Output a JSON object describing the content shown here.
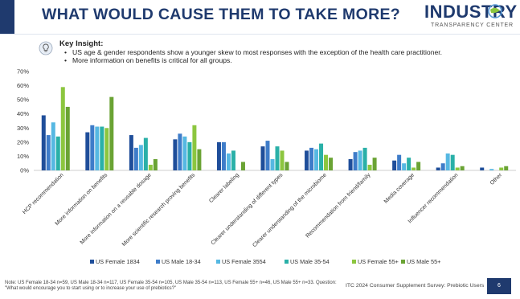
{
  "title": "WHAT WOULD CAUSE THEM TO TAKE MORE?",
  "logo": {
    "name": "INDUSTRY",
    "subtitle": "TRANSPARENCY CENTER"
  },
  "insight": {
    "heading": "Key Insight:",
    "bullets": [
      "US age & gender respondents show a younger skew to most responses with the exception of the health care practitioner.",
      "More information on benefits is critical for all groups."
    ]
  },
  "chart_data": {
    "type": "bar",
    "ylim": [
      0,
      70
    ],
    "yticks": [
      "0%",
      "10%",
      "20%",
      "30%",
      "40%",
      "50%",
      "60%",
      "70%"
    ],
    "grid": false,
    "legend_position": "bottom",
    "categories": [
      "HCP recommendation",
      "More information on benefits",
      "More information on a reusable dosage",
      "More scientific research proving benefits",
      "Clearer labeling",
      "Clearer understanding of different types",
      "Clearer understanding of the microbiome",
      "Recommendation from friend/family",
      "Media coverage",
      "Influencer recommendation",
      "Other"
    ],
    "series": [
      {
        "name": "US Female 1834",
        "color": "#1f4e9a",
        "values": [
          39,
          27,
          25,
          22,
          20,
          17,
          14,
          8,
          7,
          2,
          2
        ]
      },
      {
        "name": "US Male 18-34",
        "color": "#3e7cc9",
        "values": [
          25,
          32,
          16,
          26,
          20,
          21,
          16,
          13,
          11,
          5,
          0
        ]
      },
      {
        "name": "US Female 3554",
        "color": "#56b8e2",
        "values": [
          34,
          31,
          18,
          24,
          12,
          8,
          15,
          14,
          5,
          12,
          1
        ]
      },
      {
        "name": "US Male 35-54",
        "color": "#2ab0a8",
        "values": [
          24,
          31,
          23,
          20,
          14,
          17,
          19,
          16,
          9,
          11,
          0
        ]
      },
      {
        "name": "US Female 55+",
        "color": "#8cc63f",
        "values": [
          59,
          30,
          4,
          32,
          0,
          14,
          11,
          4,
          2,
          2,
          2
        ]
      },
      {
        "name": "US Male 55+",
        "color": "#6aa334",
        "values": [
          45,
          52,
          8,
          15,
          6,
          6,
          9,
          9,
          6,
          3,
          3
        ]
      }
    ]
  },
  "note": "Note: US Female 18-34 n=59, US Male 18-34 n=117, US Female 35-54 n=105, US Male 35-54 n=113, US Female 55+ n=46, US Male 55+ n=33. Question: \"What would encourage you to start using or to increase your use of prebiotics?\"",
  "source": "ITC 2024 Consumer Supplement Survey: Prebiotic Users",
  "page_number": "6"
}
